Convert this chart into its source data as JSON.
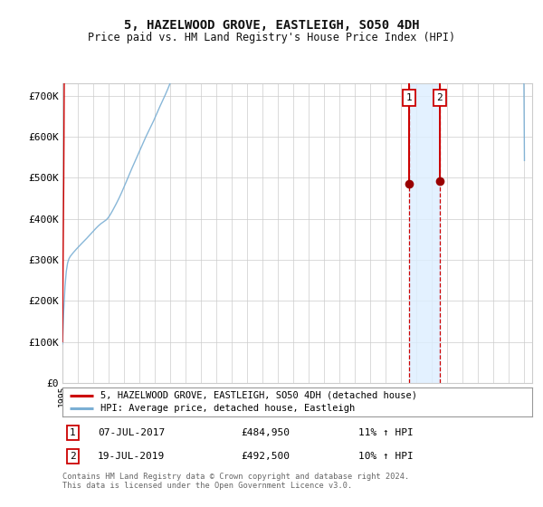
{
  "title": "5, HAZELWOOD GROVE, EASTLEIGH, SO50 4DH",
  "subtitle": "Price paid vs. HM Land Registry's House Price Index (HPI)",
  "ylabel_ticks": [
    "£0",
    "£100K",
    "£200K",
    "£300K",
    "£400K",
    "£500K",
    "£600K",
    "£700K"
  ],
  "ytick_values": [
    0,
    100000,
    200000,
    300000,
    400000,
    500000,
    600000,
    700000
  ],
  "ylim": [
    0,
    730000
  ],
  "transaction1_date": 2017.52,
  "transaction1_price": 484950,
  "transaction1_label": "1",
  "transaction1_date_str": "07-JUL-2017",
  "transaction1_price_str": "£484,950",
  "transaction1_hpi_str": "11% ↑ HPI",
  "transaction2_date": 2019.54,
  "transaction2_price": 492500,
  "transaction2_label": "2",
  "transaction2_date_str": "19-JUL-2019",
  "transaction2_price_str": "£492,500",
  "transaction2_hpi_str": "10% ↑ HPI",
  "legend_line1": "5, HAZELWOOD GROVE, EASTLEIGH, SO50 4DH (detached house)",
  "legend_line2": "HPI: Average price, detached house, Eastleigh",
  "footnote1": "Contains HM Land Registry data © Crown copyright and database right 2024.",
  "footnote2": "This data is licensed under the Open Government Licence v3.0.",
  "line1_color": "#cc0000",
  "line2_color": "#7bafd4",
  "bg_color": "#ffffff",
  "grid_color": "#cccccc",
  "highlight_color": "#ddeeff",
  "vline_color": "#cc0000",
  "marker_color": "#990000",
  "box_color": "#cc0000"
}
